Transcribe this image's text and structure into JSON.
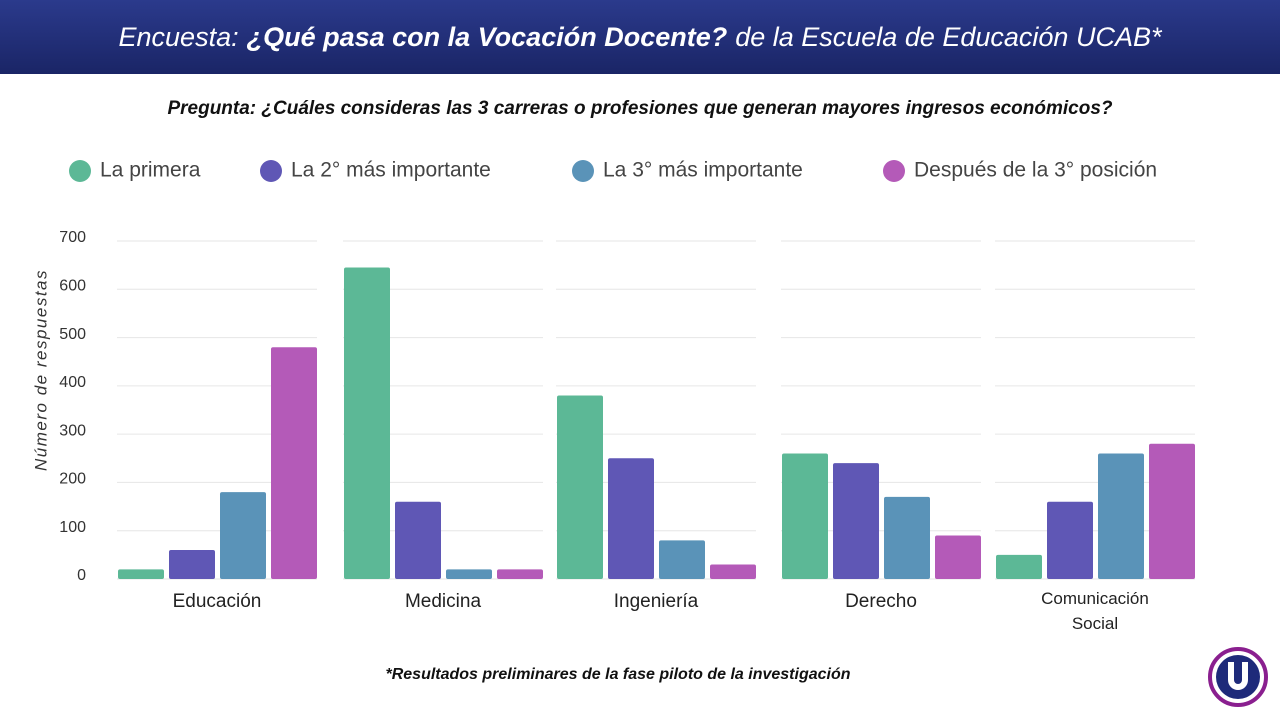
{
  "header": {
    "title_prefix": "Encuesta:",
    "title_emphasis": "¿Qué pasa con la Vocación Docente?",
    "title_suffix": "de la Escuela de Educación UCAB*"
  },
  "chart_data": {
    "type": "bar",
    "title": "Pregunta: ¿Cuáles consideras las 3 carreras o profesiones que generan mayores ingresos económicos?",
    "y_label": "Número de respuestas",
    "categories": [
      "Educación",
      "Medicina",
      "Ingeniería",
      "Derecho",
      "Comunicación Social"
    ],
    "series": [
      {
        "name": "La primera",
        "color": "#5cb896",
        "values": [
          20,
          645,
          380,
          260,
          50
        ]
      },
      {
        "name": "La 2° más importante",
        "color": "#5f57b5",
        "values": [
          60,
          160,
          250,
          240,
          160
        ]
      },
      {
        "name": "La 3° más importante",
        "color": "#5a93b8",
        "values": [
          180,
          20,
          80,
          170,
          260
        ]
      },
      {
        "name": "Después de la 3° posición",
        "color": "#b45ab8",
        "values": [
          480,
          20,
          30,
          90,
          280
        ]
      }
    ],
    "ylim": [
      0,
      700
    ],
    "yticks": [
      0,
      100,
      200,
      300,
      400,
      500,
      600,
      700
    ],
    "grid": true,
    "legend": "top"
  },
  "footnote": "*Resultados preliminares de la fase piloto de la investigación"
}
